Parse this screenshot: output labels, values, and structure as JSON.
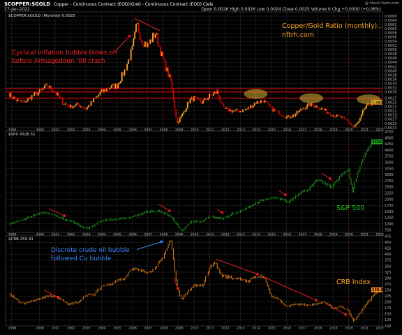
{
  "header": {
    "symbol": "$COPPER:$GOLD",
    "description": "Copper - Continuous Contract (EOD)/Gold - Continuous Contract (EOD) Ciels",
    "date": "27-Jan-2022",
    "ohlc": "Open 0.0026 High 0.0026 Low 0.0024 Close 0.0025 Volume 0 Chg +0.0000 (+0.06%)",
    "watermark": "@ StockCharts.com"
  },
  "colors": {
    "background": "#000000",
    "grid": "#2a2a2a",
    "ratio_up": "#f5a623",
    "ratio_down": "#d00000",
    "spx": "#1faa1f",
    "crb": "#ff8c1a",
    "annotation_red": "#ff2020",
    "annotation_blue": "#3a8cff",
    "annotation_orange": "#ffa52a",
    "annotation_green": "#22cc22",
    "highlight_fill": "#c8a030"
  },
  "chart_data": [
    {
      "type": "line",
      "title": "Copper/Gold Ratio (monthly)...",
      "subtitle": "nftrh.com",
      "legend": "$COPPER:$GOLD (Monthly) 0.0025",
      "annotation": "Cyclical inflation bubble blows off before Armageddon '08 crash",
      "x": [
        1998.0,
        1998.5,
        1999.0,
        1999.5,
        2000.0,
        2000.5,
        2001.0,
        2001.5,
        2002.0,
        2002.5,
        2003.0,
        2003.5,
        2004.0,
        2004.5,
        2005.0,
        2005.5,
        2006.0,
        2006.3,
        2006.6,
        2007.0,
        2007.5,
        2008.0,
        2008.5,
        2008.9,
        2009.3,
        2009.7,
        2010.0,
        2010.5,
        2011.0,
        2011.5,
        2011.9,
        2012.5,
        2013.0,
        2013.5,
        2014.0,
        2014.5,
        2015.0,
        2015.5,
        2016.0,
        2016.5,
        2017.0,
        2017.5,
        2018.0,
        2018.5,
        2019.0,
        2019.5,
        2020.0,
        2020.3,
        2020.7,
        2021.0,
        2021.5,
        2022.0
      ],
      "values": [
        0.0029,
        0.0026,
        0.0025,
        0.0028,
        0.003,
        0.0033,
        0.003,
        0.0025,
        0.0023,
        0.0024,
        0.0022,
        0.0026,
        0.003,
        0.0032,
        0.0033,
        0.004,
        0.005,
        0.0062,
        0.0055,
        0.0052,
        0.0058,
        0.0045,
        0.0035,
        0.0015,
        0.002,
        0.0026,
        0.0027,
        0.0025,
        0.0028,
        0.003,
        0.0022,
        0.0021,
        0.0021,
        0.0022,
        0.0025,
        0.0026,
        0.0022,
        0.002,
        0.0018,
        0.0019,
        0.0022,
        0.0024,
        0.0023,
        0.0021,
        0.0019,
        0.0018,
        0.0016,
        0.0013,
        0.0016,
        0.0022,
        0.0025,
        0.0025
      ],
      "ylim": [
        0.0013,
        0.0068
      ],
      "yticks": [
        "0.0066",
        "0.0064",
        "0.0062",
        "0.0060",
        "0.0058",
        "0.0056",
        "0.0054",
        "0.0052",
        "0.0050",
        "0.0048",
        "0.0046",
        "0.0044",
        "0.0042",
        "0.0040",
        "0.0038",
        "0.0036",
        "0.0034",
        "0.0032",
        "0.0030",
        "0.0027",
        "0.0025",
        "0.0023",
        "0.0021",
        "0.0019",
        "0.0017",
        "0.0015",
        "0.0013"
      ],
      "last_value": "0.0025",
      "reference_lines": [
        0.00315,
        0.003,
        0.0027
      ],
      "highlight_zones": [
        {
          "x": 2014.0,
          "y": 0.0029
        },
        {
          "x": 2017.6,
          "y": 0.0027
        },
        {
          "x": 2021.3,
          "y": 0.00265
        }
      ]
    },
    {
      "type": "line",
      "title": "S&P 500",
      "legend": "$SPX 4326.51",
      "x": [
        1998.0,
        1998.6,
        1999.5,
        2000.2,
        2000.8,
        2001.5,
        2002.0,
        2002.8,
        2003.2,
        2004.0,
        2005.0,
        2006.0,
        2007.0,
        2007.8,
        2008.5,
        2009.2,
        2009.8,
        2010.5,
        2011.0,
        2011.8,
        2012.5,
        2013.0,
        2014.0,
        2015.0,
        2015.7,
        2016.1,
        2016.8,
        2017.5,
        2018.0,
        2018.9,
        2019.5,
        2020.0,
        2020.25,
        2020.7,
        2021.0,
        2021.5,
        2022.0
      ],
      "values": [
        980,
        1100,
        1320,
        1450,
        1400,
        1200,
        1130,
        850,
        830,
        1130,
        1180,
        1280,
        1500,
        1520,
        1280,
        700,
        1100,
        1090,
        1320,
        1200,
        1400,
        1500,
        1850,
        2060,
        2000,
        1880,
        2250,
        2450,
        2800,
        2500,
        2950,
        3230,
        2300,
        3300,
        3750,
        4350,
        4326
      ],
      "ylim": [
        650,
        4800
      ],
      "yticks": [
        "4750",
        "4500",
        "4250",
        "4000",
        "3750",
        "3500",
        "3250",
        "3000",
        "2750",
        "2500",
        "2250",
        "2000",
        "1750",
        "1500",
        "1250",
        "1000",
        "750"
      ],
      "last_value": "4326.51"
    },
    {
      "type": "line",
      "title": "CRB Index",
      "legend": "$CRB 250.91",
      "annotation": "Discrete crude oil bubble followed Cu bubble",
      "x": [
        1998.0,
        1998.7,
        1999.0,
        1999.8,
        2000.5,
        2001.0,
        2001.5,
        2001.9,
        2002.5,
        2003.0,
        2003.5,
        2004.0,
        2004.5,
        2005.0,
        2005.5,
        2006.0,
        2006.5,
        2007.0,
        2007.5,
        2008.0,
        2008.5,
        2008.9,
        2009.2,
        2009.7,
        2010.0,
        2010.5,
        2011.0,
        2011.3,
        2011.8,
        2012.5,
        2013.0,
        2013.5,
        2014.0,
        2014.5,
        2015.0,
        2015.5,
        2016.0,
        2016.5,
        2017.0,
        2017.5,
        2018.0,
        2018.5,
        2019.0,
        2019.5,
        2020.0,
        2020.3,
        2020.7,
        2021.0,
        2021.5,
        2022.0
      ],
      "values": [
        235,
        200,
        195,
        210,
        225,
        225,
        205,
        190,
        200,
        230,
        230,
        265,
        275,
        290,
        300,
        340,
        335,
        320,
        340,
        390,
        460,
        260,
        210,
        250,
        270,
        265,
        340,
        370,
        310,
        300,
        300,
        285,
        305,
        310,
        225,
        210,
        180,
        190,
        190,
        185,
        195,
        200,
        175,
        180,
        165,
        120,
        150,
        180,
        220,
        250
      ],
      "ylim": [
        100,
        480
      ],
      "yticks": [
        "475",
        "450",
        "425",
        "400",
        "375",
        "350",
        "325",
        "300",
        "275",
        "250",
        "225",
        "200",
        "175",
        "150",
        "125",
        "100"
      ],
      "last_value": "250.91"
    }
  ],
  "x_axis": {
    "labels": [
      "1998",
      "2000",
      "2001",
      "2002",
      "2003",
      "2004",
      "2005",
      "2006",
      "2007",
      "2008",
      "2009",
      "2010",
      "2011",
      "2012",
      "2013",
      "2014",
      "2015",
      "2016",
      "2017",
      "2018",
      "2019",
      "2020",
      "2021",
      "2022"
    ],
    "label_positions": [
      1998.2,
      2000.0,
      2001.0,
      2002.0,
      2003.0,
      2004.0,
      2005.0,
      2006.0,
      2007.0,
      2008.0,
      2009.0,
      2010.0,
      2011.0,
      2012.0,
      2013.0,
      2014.0,
      2015.0,
      2016.0,
      2017.0,
      2018.0,
      2019.0,
      2020.0,
      2021.0,
      2022.0
    ],
    "range": [
      1997.8,
      2022.2
    ],
    "event_lines": [
      2001.0,
      2008.0,
      2011.0,
      2020.0
    ]
  }
}
